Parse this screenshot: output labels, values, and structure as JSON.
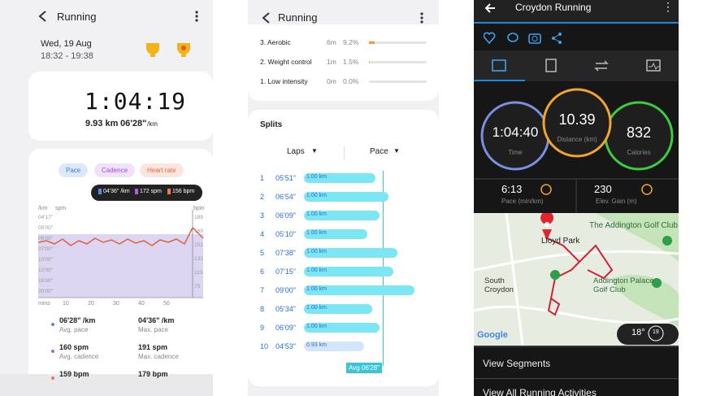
{
  "left": {
    "title": "Running",
    "date": "Wed, 19 Aug",
    "time_range": "18:32 - 19:38",
    "duration": "1:04:19",
    "distance": "9.93 km",
    "pace": "06'28\"",
    "pace_unit": "/km",
    "tabs": [
      "Pace",
      "Cadence",
      "Heart rate"
    ],
    "tooltip": [
      "04'36\" /km",
      "172 spm",
      "156 bpm"
    ],
    "axis_left_units": [
      "/km",
      "spm"
    ],
    "axis_right_unit": "bpm",
    "left_ticks": [
      "04'17\"",
      "05'00\"",
      "06'00\"",
      "07'00\"",
      "10'00\"",
      "12'00\"",
      "15'00\"",
      "30'00\""
    ],
    "right_ticks": [
      "189",
      "169",
      "151",
      "131",
      "113",
      "75"
    ],
    "x_ticks": [
      "mins",
      "10",
      "20",
      "30",
      "40",
      "50"
    ],
    "stats": [
      [
        "06'28\" /km",
        "Avg. pace"
      ],
      [
        "04'36\" /km",
        "Max. pace"
      ],
      [
        "160 spm",
        "Avg. cadence"
      ],
      [
        "191 spm",
        "Max. cadence"
      ],
      [
        "159 bpm",
        ""
      ],
      [
        "179 bpm",
        ""
      ]
    ]
  },
  "middle": {
    "title": "Running",
    "intensity": [
      [
        "3. Aerobic",
        "6m",
        "9.2%"
      ],
      [
        "2. Weight control",
        "1m",
        "1.5%"
      ],
      [
        "1. Low intensity",
        "0m",
        "0.0%"
      ]
    ],
    "splits_title": "Splits",
    "col_laps": "Laps",
    "col_pace": "Pace",
    "laps": [
      [
        "1",
        "05'51\"",
        "1.00 km"
      ],
      [
        "2",
        "06'54\"",
        "1.00 km"
      ],
      [
        "3",
        "06'09\"",
        "1.00 km"
      ],
      [
        "4",
        "05'10\"",
        "1.00 km"
      ],
      [
        "5",
        "07'38\"",
        "1.00 km"
      ],
      [
        "6",
        "07'15\"",
        "1.00 km"
      ],
      [
        "7",
        "09'00\"",
        "1.00 km"
      ],
      [
        "8",
        "05'34\"",
        "1.00 km"
      ],
      [
        "9",
        "06'09\"",
        "1.00 km"
      ],
      [
        "10",
        "04'53\"",
        "0.93 km"
      ]
    ],
    "avg": "Avg 06'28\""
  },
  "right": {
    "title": "Croydon Running",
    "circles": [
      [
        "1:04:40",
        "Time"
      ],
      [
        "10.39",
        "Distance (km)"
      ],
      [
        "832",
        "Calories"
      ]
    ],
    "metrics": [
      [
        "6:13",
        "Pace (min/km)"
      ],
      [
        "230",
        "Elev. Gain (m)"
      ]
    ],
    "map_labels": [
      "The Addington Golf Club",
      "Lloyd Park",
      "South Croydon",
      "Addington Palace Golf Club",
      "Google"
    ],
    "temp": "18°",
    "wind": "19",
    "links": [
      "View Segments",
      "View All Running Activities"
    ]
  }
}
